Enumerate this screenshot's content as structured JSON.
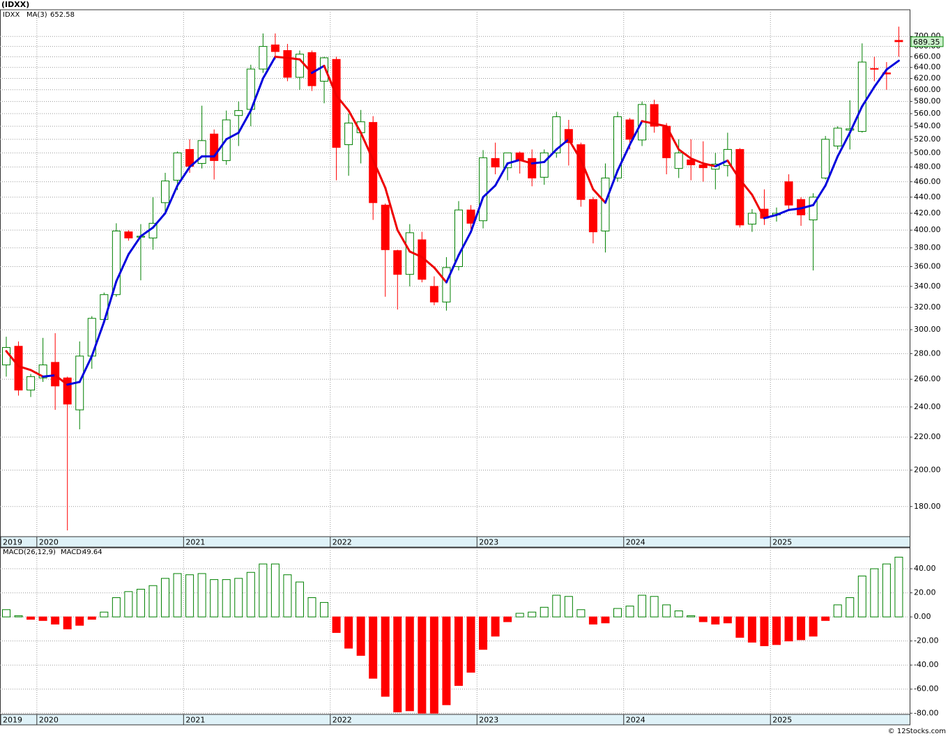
{
  "chart_data": [
    {
      "type": "candlestick",
      "title": "(IDXX)",
      "ticker": "IDXX",
      "categories": [
        "2019",
        null,
        null,
        "2020",
        null,
        null,
        null,
        null,
        null,
        null,
        null,
        null,
        null,
        null,
        null,
        "2021",
        null,
        null,
        null,
        null,
        null,
        null,
        null,
        null,
        null,
        null,
        null,
        "2022",
        null,
        null,
        null,
        null,
        null,
        null,
        null,
        null,
        null,
        null,
        null,
        "2023",
        null,
        null,
        null,
        null,
        null,
        null,
        null,
        null,
        null,
        null,
        null,
        "2024",
        null,
        null,
        null,
        null,
        null,
        null,
        null,
        null,
        null,
        null,
        null,
        "2025",
        null,
        null,
        null,
        null,
        null,
        null,
        null,
        null,
        null,
        null
      ],
      "open": [
        271,
        286,
        252,
        261,
        273,
        261,
        238,
        278,
        309,
        332,
        398,
        392,
        391,
        433,
        462,
        505,
        485,
        528,
        489,
        557,
        567,
        637,
        683,
        672,
        622,
        668,
        615,
        655,
        512,
        530,
        546,
        430,
        377,
        352,
        389,
        340,
        325,
        360,
        424,
        411,
        492,
        479,
        500,
        492,
        466,
        500,
        535,
        512,
        437,
        399,
        465,
        550,
        519,
        575,
        540,
        478,
        490,
        483,
        477,
        482,
        505,
        407,
        425,
        418,
        460,
        437,
        412,
        465,
        510,
        534,
        532,
        638,
        630,
        692
      ],
      "high": [
        294,
        290,
        264,
        293,
        297,
        262,
        290,
        312,
        334,
        408,
        400,
        407,
        440,
        472,
        502,
        520,
        573,
        535,
        565,
        580,
        645,
        706,
        706,
        685,
        672,
        672,
        660,
        660,
        560,
        566,
        556,
        432,
        378,
        407,
        398,
        350,
        370,
        435,
        430,
        504,
        515,
        500,
        502,
        505,
        505,
        563,
        550,
        515,
        440,
        485,
        563,
        553,
        580,
        583,
        545,
        520,
        520,
        517,
        500,
        530,
        507,
        425,
        450,
        427,
        470,
        440,
        445,
        525,
        540,
        582,
        686,
        660,
        650,
        720
      ],
      "low": [
        262,
        248,
        247,
        258,
        238,
        168,
        225,
        268,
        306,
        330,
        388,
        346,
        378,
        420,
        449,
        472,
        478,
        463,
        483,
        510,
        540,
        630,
        655,
        615,
        600,
        598,
        577,
        462,
        468,
        485,
        412,
        330,
        318,
        340,
        344,
        322,
        317,
        356,
        400,
        402,
        470,
        462,
        471,
        454,
        456,
        493,
        482,
        428,
        385,
        375,
        460,
        505,
        510,
        530,
        470,
        465,
        462,
        460,
        450,
        467,
        403,
        398,
        406,
        410,
        425,
        405,
        356,
        463,
        505,
        505,
        530,
        615,
        600,
        660
      ],
      "close": [
        285,
        252,
        262,
        271,
        255,
        242,
        278,
        310,
        332,
        399,
        391,
        393,
        408,
        461,
        500,
        481,
        518,
        489,
        550,
        565,
        637,
        680,
        670,
        622,
        665,
        607,
        658,
        508,
        545,
        547,
        433,
        378,
        352,
        397,
        347,
        325,
        359,
        424,
        408,
        493,
        480,
        500,
        490,
        465,
        500,
        555,
        515,
        437,
        398,
        465,
        555,
        520,
        575,
        540,
        493,
        500,
        483,
        479,
        484,
        505,
        406,
        420,
        414,
        420,
        430,
        418,
        440,
        520,
        537,
        536,
        650,
        637,
        628,
        689.35
      ],
      "up_color": "#008000",
      "down_color": "#ff0000",
      "ma": {
        "name": "MA(3)",
        "up_color": "#0000dd",
        "down_color": "#ee0000",
        "values": [
          282,
          270,
          267,
          262,
          263,
          256,
          258,
          278,
          307,
          345,
          373,
          393,
          403,
          420,
          455,
          480,
          495,
          495,
          520,
          530,
          565,
          620,
          660,
          658,
          655,
          630,
          643,
          590,
          565,
          530,
          490,
          452,
          400,
          376,
          370,
          359,
          344,
          372,
          398,
          440,
          455,
          485,
          490,
          485,
          487,
          505,
          520,
          490,
          450,
          433,
          475,
          512,
          548,
          544,
          540,
          505,
          492,
          485,
          481,
          489,
          463,
          443,
          414,
          418,
          424,
          426,
          430,
          455,
          495,
          530,
          572,
          605,
          636,
          652.58
        ]
      },
      "log_scale": true,
      "grid": true,
      "ylim": [
        165,
        756
      ],
      "yticks": [
        {
          "value": 180,
          "label": "180.00"
        },
        {
          "value": 200,
          "label": "200.00"
        },
        {
          "value": 220,
          "label": "220.00"
        },
        {
          "value": 240,
          "label": "240.00"
        },
        {
          "value": 260,
          "label": "260.00"
        },
        {
          "value": 280,
          "label": "280.00"
        },
        {
          "value": 300,
          "label": "300.00"
        },
        {
          "value": 320,
          "label": "320.00"
        },
        {
          "value": 340,
          "label": "340.00"
        },
        {
          "value": 360,
          "label": "360.00"
        },
        {
          "value": 380,
          "label": "380.00"
        },
        {
          "value": 400,
          "label": "400.00"
        },
        {
          "value": 420,
          "label": "420.00"
        },
        {
          "value": 440,
          "label": "440.00"
        },
        {
          "value": 460,
          "label": "460.00"
        },
        {
          "value": 480,
          "label": "480.00"
        },
        {
          "value": 500,
          "label": "500.00"
        },
        {
          "value": 520,
          "label": "520.00"
        },
        {
          "value": 540,
          "label": "540.00"
        },
        {
          "value": 560,
          "label": "560.00"
        },
        {
          "value": 580,
          "label": "580.00"
        },
        {
          "value": 600,
          "label": "600.00"
        },
        {
          "value": 620,
          "label": "620.00"
        },
        {
          "value": 640,
          "label": "640.00"
        },
        {
          "value": 660,
          "label": "660.00"
        },
        {
          "value": 680,
          "label": "680.00"
        },
        {
          "value": 700,
          "label": "700.00"
        }
      ]
    },
    {
      "type": "bar",
      "name": "MACD(26,12,9)",
      "value_caption": "MACD:",
      "values": [
        6,
        1,
        -2,
        -3,
        -6,
        -10,
        -7,
        -2,
        4,
        16,
        21,
        23,
        26,
        32,
        36,
        35,
        36,
        31,
        31,
        32,
        37,
        44,
        44,
        35,
        29,
        16,
        12,
        -13,
        -26,
        -32,
        -51,
        -66,
        -79,
        -78,
        -80,
        -80,
        -73,
        -57,
        -46,
        -27,
        -16,
        -4,
        3,
        4,
        8,
        18,
        17,
        6,
        -6,
        -5,
        7,
        9,
        18,
        17,
        10,
        5,
        1,
        -4,
        -6,
        -5,
        -17,
        -21,
        -24,
        -23,
        -20,
        -19,
        -16,
        -3,
        10,
        16,
        34,
        40,
        44,
        49.64
      ],
      "up_color": "#008000",
      "down_color": "#ff0000",
      "grid": true,
      "ylim": [
        -81,
        57.4
      ],
      "yticks": [
        {
          "value": -80,
          "label": "-80.00"
        },
        {
          "value": -60,
          "label": "-60.00"
        },
        {
          "value": -40,
          "label": "-40.00"
        },
        {
          "value": -20,
          "label": "-20.00"
        },
        {
          "value": 0,
          "label": "0.00"
        },
        {
          "value": 20,
          "label": "20.00"
        },
        {
          "value": 40,
          "label": "40.00"
        }
      ],
      "source": "© 12Stocks.com"
    }
  ]
}
